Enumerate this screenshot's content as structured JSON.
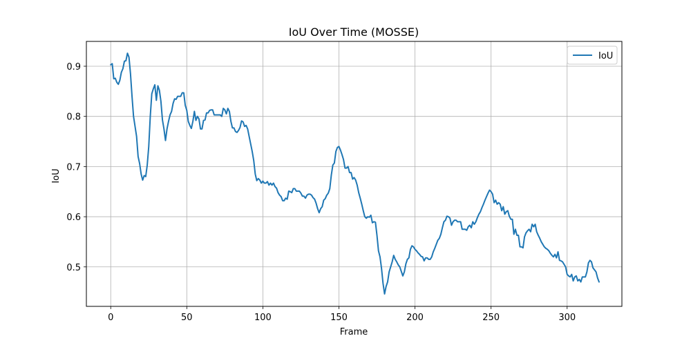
{
  "chart_data": {
    "type": "line",
    "title": "IoU Over Time (MOSSE)",
    "xlabel": "Frame",
    "ylabel": "IoU",
    "xlim": [
      -16,
      336
    ],
    "ylim": [
      0.4213,
      0.9495
    ],
    "xticks": [
      0,
      50,
      100,
      150,
      200,
      250,
      300
    ],
    "yticks": [
      0.5,
      0.6,
      0.7,
      0.8,
      0.9
    ],
    "ytick_labels": [
      "0.5",
      "0.6",
      "0.7",
      "0.8",
      "0.9"
    ],
    "grid": true,
    "legend": {
      "position": "top-right",
      "entries": [
        "IoU"
      ]
    },
    "series": [
      {
        "name": "IoU",
        "color": "#1f77b4",
        "points": [
          [
            0,
            0.903
          ],
          [
            1,
            0.905
          ],
          [
            2,
            0.875
          ],
          [
            3,
            0.876
          ],
          [
            4,
            0.868
          ],
          [
            5,
            0.864
          ],
          [
            6,
            0.872
          ],
          [
            7,
            0.888
          ],
          [
            8,
            0.895
          ],
          [
            9,
            0.91
          ],
          [
            10,
            0.911
          ],
          [
            11,
            0.926
          ],
          [
            12,
            0.918
          ],
          [
            13,
            0.885
          ],
          [
            14,
            0.84
          ],
          [
            15,
            0.8
          ],
          [
            16,
            0.78
          ],
          [
            17,
            0.76
          ],
          [
            18,
            0.72
          ],
          [
            19,
            0.706
          ],
          [
            20,
            0.685
          ],
          [
            21,
            0.673
          ],
          [
            22,
            0.682
          ],
          [
            23,
            0.68
          ],
          [
            24,
            0.703
          ],
          [
            25,
            0.74
          ],
          [
            26,
            0.8
          ],
          [
            27,
            0.845
          ],
          [
            28,
            0.855
          ],
          [
            29,
            0.863
          ],
          [
            30,
            0.832
          ],
          [
            31,
            0.861
          ],
          [
            32,
            0.852
          ],
          [
            33,
            0.83
          ],
          [
            34,
            0.793
          ],
          [
            35,
            0.775
          ],
          [
            36,
            0.752
          ],
          [
            37,
            0.775
          ],
          [
            38,
            0.79
          ],
          [
            39,
            0.803
          ],
          [
            40,
            0.81
          ],
          [
            41,
            0.826
          ],
          [
            42,
            0.835
          ],
          [
            43,
            0.834
          ],
          [
            44,
            0.84
          ],
          [
            45,
            0.84
          ],
          [
            46,
            0.84
          ],
          [
            47,
            0.847
          ],
          [
            48,
            0.847
          ],
          [
            49,
            0.822
          ],
          [
            50,
            0.812
          ],
          [
            51,
            0.79
          ],
          [
            52,
            0.782
          ],
          [
            53,
            0.776
          ],
          [
            54,
            0.79
          ],
          [
            55,
            0.81
          ],
          [
            56,
            0.792
          ],
          [
            57,
            0.8
          ],
          [
            58,
            0.795
          ],
          [
            59,
            0.775
          ],
          [
            60,
            0.775
          ],
          [
            61,
            0.792
          ],
          [
            62,
            0.793
          ],
          [
            63,
            0.807
          ],
          [
            64,
            0.807
          ],
          [
            65,
            0.812
          ],
          [
            66,
            0.813
          ],
          [
            67,
            0.813
          ],
          [
            68,
            0.803
          ],
          [
            69,
            0.803
          ],
          [
            70,
            0.803
          ],
          [
            71,
            0.803
          ],
          [
            72,
            0.803
          ],
          [
            73,
            0.8
          ],
          [
            74,
            0.816
          ],
          [
            75,
            0.813
          ],
          [
            76,
            0.805
          ],
          [
            77,
            0.816
          ],
          [
            78,
            0.81
          ],
          [
            79,
            0.79
          ],
          [
            80,
            0.777
          ],
          [
            81,
            0.777
          ],
          [
            82,
            0.77
          ],
          [
            83,
            0.768
          ],
          [
            84,
            0.772
          ],
          [
            85,
            0.778
          ],
          [
            86,
            0.791
          ],
          [
            87,
            0.789
          ],
          [
            88,
            0.78
          ],
          [
            89,
            0.782
          ],
          [
            90,
            0.775
          ],
          [
            91,
            0.76
          ],
          [
            92,
            0.745
          ],
          [
            93,
            0.73
          ],
          [
            94,
            0.712
          ],
          [
            95,
            0.685
          ],
          [
            96,
            0.672
          ],
          [
            97,
            0.676
          ],
          [
            98,
            0.673
          ],
          [
            99,
            0.667
          ],
          [
            100,
            0.671
          ],
          [
            101,
            0.667
          ],
          [
            102,
            0.667
          ],
          [
            103,
            0.67
          ],
          [
            104,
            0.663
          ],
          [
            105,
            0.667
          ],
          [
            106,
            0.663
          ],
          [
            107,
            0.667
          ],
          [
            108,
            0.66
          ],
          [
            109,
            0.657
          ],
          [
            110,
            0.648
          ],
          [
            111,
            0.643
          ],
          [
            112,
            0.64
          ],
          [
            113,
            0.632
          ],
          [
            114,
            0.632
          ],
          [
            115,
            0.637
          ],
          [
            116,
            0.635
          ],
          [
            117,
            0.651
          ],
          [
            118,
            0.65
          ],
          [
            119,
            0.648
          ],
          [
            120,
            0.656
          ],
          [
            121,
            0.656
          ],
          [
            122,
            0.651
          ],
          [
            123,
            0.651
          ],
          [
            124,
            0.651
          ],
          [
            125,
            0.647
          ],
          [
            126,
            0.641
          ],
          [
            127,
            0.641
          ],
          [
            128,
            0.637
          ],
          [
            129,
            0.643
          ],
          [
            130,
            0.645
          ],
          [
            131,
            0.645
          ],
          [
            132,
            0.643
          ],
          [
            133,
            0.638
          ],
          [
            134,
            0.635
          ],
          [
            135,
            0.627
          ],
          [
            136,
            0.616
          ],
          [
            137,
            0.608
          ],
          [
            138,
            0.616
          ],
          [
            139,
            0.62
          ],
          [
            140,
            0.633
          ],
          [
            141,
            0.636
          ],
          [
            142,
            0.643
          ],
          [
            143,
            0.647
          ],
          [
            144,
            0.656
          ],
          [
            145,
            0.683
          ],
          [
            146,
            0.703
          ],
          [
            147,
            0.707
          ],
          [
            148,
            0.73
          ],
          [
            149,
            0.738
          ],
          [
            150,
            0.74
          ],
          [
            151,
            0.733
          ],
          [
            152,
            0.724
          ],
          [
            153,
            0.714
          ],
          [
            154,
            0.697
          ],
          [
            155,
            0.697
          ],
          [
            156,
            0.7
          ],
          [
            157,
            0.688
          ],
          [
            158,
            0.688
          ],
          [
            159,
            0.675
          ],
          [
            160,
            0.678
          ],
          [
            161,
            0.673
          ],
          [
            162,
            0.663
          ],
          [
            163,
            0.648
          ],
          [
            164,
            0.637
          ],
          [
            165,
            0.625
          ],
          [
            166,
            0.612
          ],
          [
            167,
            0.6
          ],
          [
            168,
            0.597
          ],
          [
            169,
            0.6
          ],
          [
            170,
            0.599
          ],
          [
            171,
            0.603
          ],
          [
            172,
            0.588
          ],
          [
            173,
            0.59
          ],
          [
            174,
            0.589
          ],
          [
            175,
            0.563
          ],
          [
            176,
            0.532
          ],
          [
            177,
            0.52
          ],
          [
            178,
            0.497
          ],
          [
            179,
            0.467
          ],
          [
            180,
            0.446
          ],
          [
            181,
            0.461
          ],
          [
            182,
            0.47
          ],
          [
            183,
            0.49
          ],
          [
            184,
            0.5
          ],
          [
            185,
            0.51
          ],
          [
            186,
            0.523
          ],
          [
            187,
            0.515
          ],
          [
            188,
            0.51
          ],
          [
            189,
            0.504
          ],
          [
            190,
            0.5
          ],
          [
            191,
            0.491
          ],
          [
            192,
            0.482
          ],
          [
            193,
            0.49
          ],
          [
            194,
            0.506
          ],
          [
            195,
            0.515
          ],
          [
            196,
            0.518
          ],
          [
            197,
            0.535
          ],
          [
            198,
            0.542
          ],
          [
            199,
            0.54
          ],
          [
            200,
            0.535
          ],
          [
            201,
            0.532
          ],
          [
            202,
            0.528
          ],
          [
            203,
            0.525
          ],
          [
            204,
            0.521
          ],
          [
            205,
            0.52
          ],
          [
            206,
            0.512
          ],
          [
            207,
            0.518
          ],
          [
            208,
            0.518
          ],
          [
            209,
            0.515
          ],
          [
            210,
            0.515
          ],
          [
            211,
            0.52
          ],
          [
            212,
            0.53
          ],
          [
            213,
            0.537
          ],
          [
            214,
            0.545
          ],
          [
            215,
            0.553
          ],
          [
            216,
            0.557
          ],
          [
            217,
            0.565
          ],
          [
            218,
            0.578
          ],
          [
            219,
            0.59
          ],
          [
            220,
            0.593
          ],
          [
            221,
            0.601
          ],
          [
            222,
            0.6
          ],
          [
            223,
            0.597
          ],
          [
            224,
            0.583
          ],
          [
            225,
            0.59
          ],
          [
            226,
            0.593
          ],
          [
            227,
            0.593
          ],
          [
            228,
            0.59
          ],
          [
            229,
            0.59
          ],
          [
            230,
            0.59
          ],
          [
            231,
            0.575
          ],
          [
            232,
            0.575
          ],
          [
            233,
            0.575
          ],
          [
            234,
            0.573
          ],
          [
            235,
            0.58
          ],
          [
            236,
            0.583
          ],
          [
            237,
            0.578
          ],
          [
            238,
            0.59
          ],
          [
            239,
            0.585
          ],
          [
            240,
            0.59
          ],
          [
            241,
            0.598
          ],
          [
            242,
            0.605
          ],
          [
            243,
            0.61
          ],
          [
            244,
            0.618
          ],
          [
            245,
            0.625
          ],
          [
            246,
            0.633
          ],
          [
            247,
            0.64
          ],
          [
            248,
            0.647
          ],
          [
            249,
            0.653
          ],
          [
            250,
            0.65
          ],
          [
            251,
            0.645
          ],
          [
            252,
            0.628
          ],
          [
            253,
            0.633
          ],
          [
            254,
            0.625
          ],
          [
            255,
            0.628
          ],
          [
            256,
            0.625
          ],
          [
            257,
            0.612
          ],
          [
            258,
            0.62
          ],
          [
            259,
            0.605
          ],
          [
            260,
            0.61
          ],
          [
            261,
            0.612
          ],
          [
            262,
            0.601
          ],
          [
            263,
            0.595
          ],
          [
            264,
            0.595
          ],
          [
            265,
            0.565
          ],
          [
            266,
            0.575
          ],
          [
            267,
            0.563
          ],
          [
            268,
            0.563
          ],
          [
            269,
            0.54
          ],
          [
            270,
            0.54
          ],
          [
            271,
            0.538
          ],
          [
            272,
            0.56
          ],
          [
            273,
            0.568
          ],
          [
            274,
            0.572
          ],
          [
            275,
            0.575
          ],
          [
            276,
            0.57
          ],
          [
            277,
            0.585
          ],
          [
            278,
            0.58
          ],
          [
            279,
            0.585
          ],
          [
            280,
            0.57
          ],
          [
            281,
            0.563
          ],
          [
            282,
            0.557
          ],
          [
            283,
            0.55
          ],
          [
            284,
            0.545
          ],
          [
            285,
            0.54
          ],
          [
            286,
            0.537
          ],
          [
            287,
            0.535
          ],
          [
            288,
            0.532
          ],
          [
            289,
            0.527
          ],
          [
            290,
            0.523
          ],
          [
            291,
            0.52
          ],
          [
            292,
            0.525
          ],
          [
            293,
            0.518
          ],
          [
            294,
            0.53
          ],
          [
            295,
            0.513
          ],
          [
            296,
            0.512
          ],
          [
            297,
            0.51
          ],
          [
            298,
            0.505
          ],
          [
            299,
            0.5
          ],
          [
            300,
            0.485
          ],
          [
            301,
            0.482
          ],
          [
            302,
            0.48
          ],
          [
            303,
            0.485
          ],
          [
            304,
            0.472
          ],
          [
            305,
            0.48
          ],
          [
            306,
            0.482
          ],
          [
            307,
            0.472
          ],
          [
            308,
            0.475
          ],
          [
            309,
            0.47
          ],
          [
            310,
            0.48
          ],
          [
            311,
            0.48
          ],
          [
            312,
            0.48
          ],
          [
            313,
            0.49
          ],
          [
            314,
            0.508
          ],
          [
            315,
            0.513
          ],
          [
            316,
            0.51
          ],
          [
            317,
            0.498
          ],
          [
            318,
            0.494
          ],
          [
            319,
            0.49
          ],
          [
            320,
            0.478
          ],
          [
            321,
            0.47
          ]
        ]
      }
    ]
  }
}
